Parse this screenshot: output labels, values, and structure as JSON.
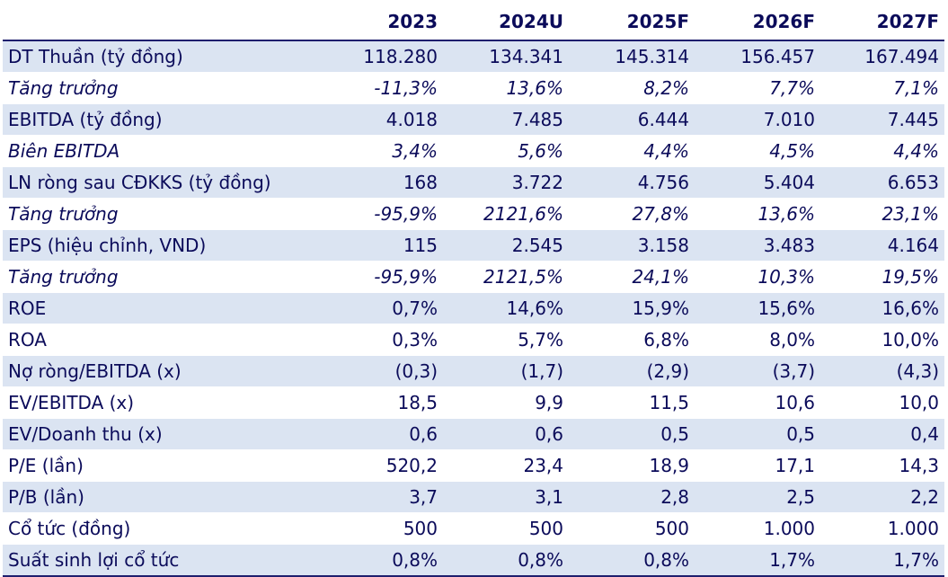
{
  "columns": [
    "",
    "2023",
    "2024U",
    "2025F",
    "2026F",
    "2027F"
  ],
  "rows": [
    {
      "label": "DT Thuần (tỷ đồng)",
      "values": [
        "118.280",
        "134.341",
        "145.314",
        "156.457",
        "167.494"
      ],
      "italic": false
    },
    {
      "label": "Tăng trưởng",
      "values": [
        "-11,3%",
        "13,6%",
        "8,2%",
        "7,7%",
        "7,1%"
      ],
      "italic": true
    },
    {
      "label": "EBITDA (tỷ đồng)",
      "values": [
        "4.018",
        "7.485",
        "6.444",
        "7.010",
        "7.445"
      ],
      "italic": false
    },
    {
      "label": "Biên EBITDA",
      "values": [
        "3,4%",
        "5,6%",
        "4,4%",
        "4,5%",
        "4,4%"
      ],
      "italic": true
    },
    {
      "label": "LN ròng sau CĐKKS (tỷ đồng)",
      "values": [
        "168",
        "3.722",
        "4.756",
        "5.404",
        "6.653"
      ],
      "italic": false
    },
    {
      "label": "Tăng trưởng",
      "values": [
        "-95,9%",
        "2121,6%",
        "27,8%",
        "13,6%",
        "23,1%"
      ],
      "italic": true
    },
    {
      "label": "EPS (hiệu chỉnh, VND)",
      "values": [
        "115",
        "2.545",
        "3.158",
        "3.483",
        "4.164"
      ],
      "italic": false
    },
    {
      "label": "Tăng trưởng",
      "values": [
        "-95,9%",
        "2121,5%",
        "24,1%",
        "10,3%",
        "19,5%"
      ],
      "italic": true
    },
    {
      "label": "ROE",
      "values": [
        "0,7%",
        "14,6%",
        "15,9%",
        "15,6%",
        "16,6%"
      ],
      "italic": false
    },
    {
      "label": "ROA",
      "values": [
        "0,3%",
        "5,7%",
        "6,8%",
        "8,0%",
        "10,0%"
      ],
      "italic": false
    },
    {
      "label": "Nợ ròng/EBITDA (x)",
      "values": [
        "(0,3)",
        "(1,7)",
        "(2,9)",
        "(3,7)",
        "(4,3)"
      ],
      "italic": false
    },
    {
      "label": "EV/EBITDA (x)",
      "values": [
        "18,5",
        "9,9",
        "11,5",
        "10,6",
        "10,0"
      ],
      "italic": false
    },
    {
      "label": "EV/Doanh thu (x)",
      "values": [
        "0,6",
        "0,6",
        "0,5",
        "0,5",
        "0,4"
      ],
      "italic": false
    },
    {
      "label": "P/E (lần)",
      "values": [
        "520,2",
        "23,4",
        "18,9",
        "17,1",
        "14,3"
      ],
      "italic": false
    },
    {
      "label": "P/B (lần)",
      "values": [
        "3,7",
        "3,1",
        "2,8",
        "2,5",
        "2,2"
      ],
      "italic": false
    },
    {
      "label": "Cổ tức (đồng)",
      "values": [
        "500",
        "500",
        "500",
        "1.000",
        "1.000"
      ],
      "italic": false
    },
    {
      "label": "Suất sinh lợi cổ tức",
      "values": [
        "0,8%",
        "0,8%",
        "0,8%",
        "1,7%",
        "1,7%"
      ],
      "italic": false
    }
  ],
  "colors": {
    "text": "#0b0b5a",
    "row_shade": "#dbe4f2",
    "rule": "#1e1e6e"
  }
}
